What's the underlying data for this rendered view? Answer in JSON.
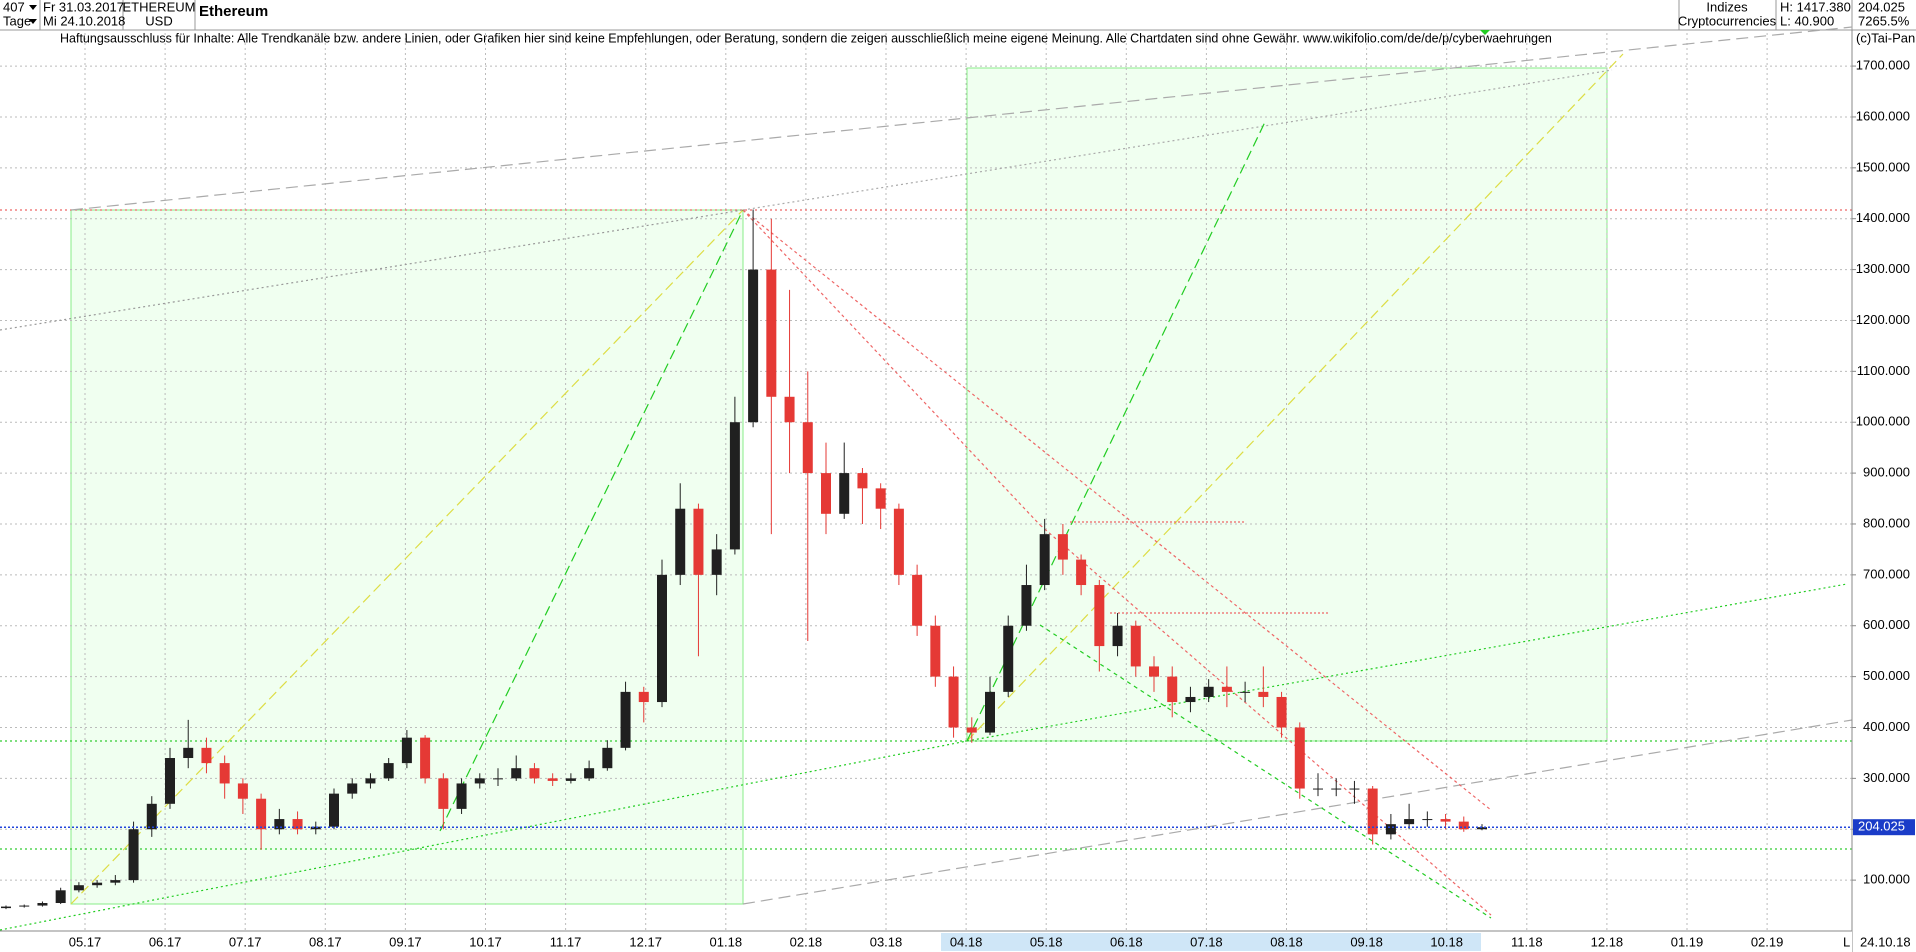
{
  "header": {
    "count": "407",
    "date_from": "Fr 31.03.2017",
    "period": "Tage",
    "date_to": "Mi 24.10.2018",
    "symbol": "ETHEREUM",
    "currency": "USD",
    "name": "Ethereum",
    "group": "Indizes",
    "subgroup": "Cryptocurrencies",
    "high": "H: 1417.380",
    "low": "L: 40.900",
    "last": "204.025",
    "change": "7265.5%",
    "disclaimer": "Haftungsausschluss für Inhalte: Alle Trendkanäle bzw. andere Linien, oder Grafiken hier sind keine Empfehlungen, oder Beratung, sondern die zeigen ausschließlich meine eigene Meinung. Alle Chartdaten sind ohne Gewähr.  www.wikifolio.com/de/de/p/cyberwaehrungen",
    "copyright": "(c)Tai-Pan",
    "corner": "L",
    "date_end": "24.10.18"
  },
  "chart_data": {
    "type": "candlestick",
    "up_color": "#202020",
    "down_color": "#e53935",
    "grid": true,
    "ylim": [
      0,
      1765
    ],
    "yticks": [
      {
        "value": 100,
        "label": "100.000"
      },
      {
        "value": 200,
        "label": "200.000"
      },
      {
        "value": 300,
        "label": "300.000"
      },
      {
        "value": 400,
        "label": "400.000"
      },
      {
        "value": 500,
        "label": "500.000"
      },
      {
        "value": 600,
        "label": "600.000"
      },
      {
        "value": 700,
        "label": "700.000"
      },
      {
        "value": 800,
        "label": "800.000"
      },
      {
        "value": 900,
        "label": "900.000"
      },
      {
        "value": 1000,
        "label": "1000.000"
      },
      {
        "value": 1100,
        "label": "1100.000"
      },
      {
        "value": 1200,
        "label": "1200.000"
      },
      {
        "value": 1300,
        "label": "1300.000"
      },
      {
        "value": 1400,
        "label": "1400.000"
      },
      {
        "value": 1500,
        "label": "1500.000"
      },
      {
        "value": 1600,
        "label": "1600.000"
      },
      {
        "value": 1700,
        "label": "1700.000"
      }
    ],
    "month_labels": [
      "05.17",
      "06.17",
      "07.17",
      "08.17",
      "09.17",
      "10.17",
      "11.17",
      "12.17",
      "01.18",
      "02.18",
      "03.18",
      "04.18",
      "05.18",
      "06.18",
      "07.18",
      "08.18",
      "09.18",
      "10.18",
      "11.18",
      "12.18",
      "01.19",
      "02.19"
    ],
    "last_price": 204.025,
    "open": [
      45,
      48,
      50,
      55,
      80,
      90,
      95,
      100,
      200,
      250,
      340,
      360,
      330,
      290,
      260,
      200,
      220,
      200,
      205,
      270,
      290,
      300,
      330,
      380,
      300,
      240,
      290,
      300,
      300,
      320,
      300,
      295,
      300,
      320,
      360,
      470,
      450,
      700,
      830,
      700,
      750,
      1000,
      1300,
      1050,
      1000,
      900,
      820,
      900,
      870,
      830,
      700,
      600,
      500,
      400,
      390,
      470,
      600,
      680,
      780,
      730,
      680,
      560,
      600,
      520,
      500,
      450,
      460,
      480,
      470,
      470,
      460,
      400,
      280,
      280,
      280,
      280,
      190,
      210,
      220,
      220,
      215,
      200
    ],
    "high": [
      50,
      52,
      58,
      85,
      96,
      100,
      110,
      215,
      265,
      360,
      415,
      380,
      345,
      300,
      270,
      240,
      235,
      215,
      280,
      300,
      310,
      340,
      395,
      385,
      310,
      300,
      310,
      320,
      345,
      330,
      310,
      310,
      335,
      375,
      490,
      480,
      730,
      880,
      840,
      780,
      1050,
      1418,
      1400,
      1260,
      1100,
      960,
      960,
      910,
      880,
      840,
      720,
      620,
      520,
      420,
      500,
      620,
      720,
      810,
      800,
      740,
      690,
      625,
      610,
      540,
      520,
      480,
      495,
      520,
      490,
      520,
      470,
      410,
      310,
      300,
      295,
      285,
      230,
      250,
      235,
      230,
      225,
      210
    ],
    "low": [
      43,
      46,
      48,
      53,
      76,
      85,
      90,
      95,
      185,
      240,
      320,
      310,
      260,
      230,
      160,
      190,
      190,
      190,
      200,
      260,
      280,
      295,
      320,
      290,
      200,
      230,
      280,
      285,
      295,
      290,
      285,
      290,
      295,
      315,
      355,
      410,
      440,
      680,
      540,
      660,
      740,
      990,
      780,
      900,
      570,
      780,
      810,
      800,
      790,
      680,
      580,
      480,
      380,
      370,
      385,
      460,
      590,
      670,
      700,
      660,
      510,
      540,
      500,
      470,
      420,
      430,
      450,
      440,
      450,
      440,
      380,
      260,
      265,
      265,
      250,
      170,
      180,
      200,
      205,
      200,
      195,
      198
    ],
    "close": [
      48,
      50,
      55,
      80,
      90,
      95,
      100,
      200,
      250,
      340,
      360,
      330,
      290,
      260,
      200,
      220,
      200,
      205,
      270,
      290,
      300,
      330,
      380,
      300,
      240,
      290,
      300,
      300,
      320,
      300,
      295,
      300,
      320,
      360,
      470,
      450,
      700,
      830,
      700,
      750,
      1000,
      1300,
      1050,
      1000,
      900,
      820,
      900,
      870,
      830,
      700,
      600,
      500,
      400,
      390,
      470,
      600,
      680,
      780,
      730,
      680,
      560,
      600,
      520,
      500,
      450,
      460,
      480,
      470,
      470,
      460,
      400,
      280,
      280,
      280,
      280,
      190,
      210,
      220,
      220,
      215,
      200,
      204
    ]
  }
}
